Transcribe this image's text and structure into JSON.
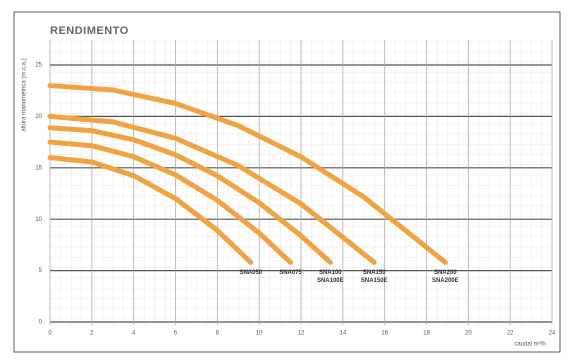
{
  "chart_data": {
    "type": "line",
    "title": "RENDIMENTO",
    "y_label": "altura manométrica (m.c.a.)",
    "x_label": "caudal m³/h",
    "xlim": [
      0,
      24
    ],
    "xticks": [
      0,
      2,
      4,
      6,
      8,
      10,
      12,
      14,
      16,
      18,
      20,
      22,
      24
    ],
    "ylim": [
      0,
      25
    ],
    "yticks": [
      0,
      5,
      10,
      15,
      20,
      25
    ],
    "grid": true,
    "series": [
      {
        "name": "SNA050",
        "label": [
          "SNA050"
        ],
        "color": "#f2a341",
        "x": [
          0,
          2,
          4,
          6,
          8,
          9.6
        ],
        "values": [
          16,
          15.56,
          14.23,
          12.01,
          8.91,
          5.8
        ]
      },
      {
        "name": "SNA075",
        "label": [
          "SNA075"
        ],
        "color": "#f2a341",
        "x": [
          0,
          2,
          4,
          6,
          8,
          10,
          11.5
        ],
        "values": [
          17.5,
          17.15,
          16.08,
          14.31,
          11.84,
          8.65,
          5.8
        ]
      },
      {
        "name": "SNA100",
        "label": [
          "SNA100",
          "SNA100E"
        ],
        "color": "#f2a341",
        "x": [
          0,
          2,
          4,
          6,
          8,
          10,
          12,
          13.4
        ],
        "values": [
          18.9,
          18.61,
          17.73,
          16.27,
          14.23,
          11.6,
          8.39,
          5.8
        ]
      },
      {
        "name": "SNA150",
        "label": [
          "SNA150",
          "SNA150E"
        ],
        "color": "#f2a341",
        "x": [
          0,
          3,
          6,
          9,
          12,
          15.5
        ],
        "values": [
          20,
          19.47,
          17.87,
          15.21,
          11.49,
          5.8
        ]
      },
      {
        "name": "SNA200",
        "label": [
          "SNA200",
          "SNA200E"
        ],
        "color": "#f2a341",
        "x": [
          0,
          3,
          6,
          9,
          12,
          15,
          18.9
        ],
        "values": [
          23,
          22.57,
          21.26,
          19.1,
          16.06,
          12.16,
          5.8
        ]
      }
    ]
  }
}
